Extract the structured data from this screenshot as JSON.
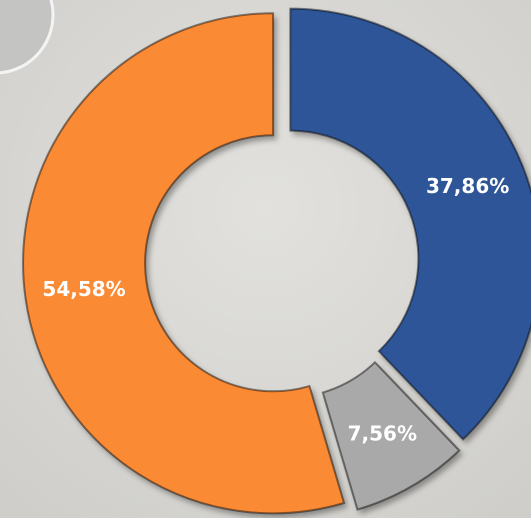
{
  "chart_data": {
    "type": "donut",
    "values": [
      37.86,
      7.56,
      54.58
    ],
    "value_labels": [
      "37,86%",
      "7,56%",
      "54,58%"
    ],
    "colors": [
      "#2f5597",
      "#a9a9a9",
      "#fb8a35"
    ]
  }
}
